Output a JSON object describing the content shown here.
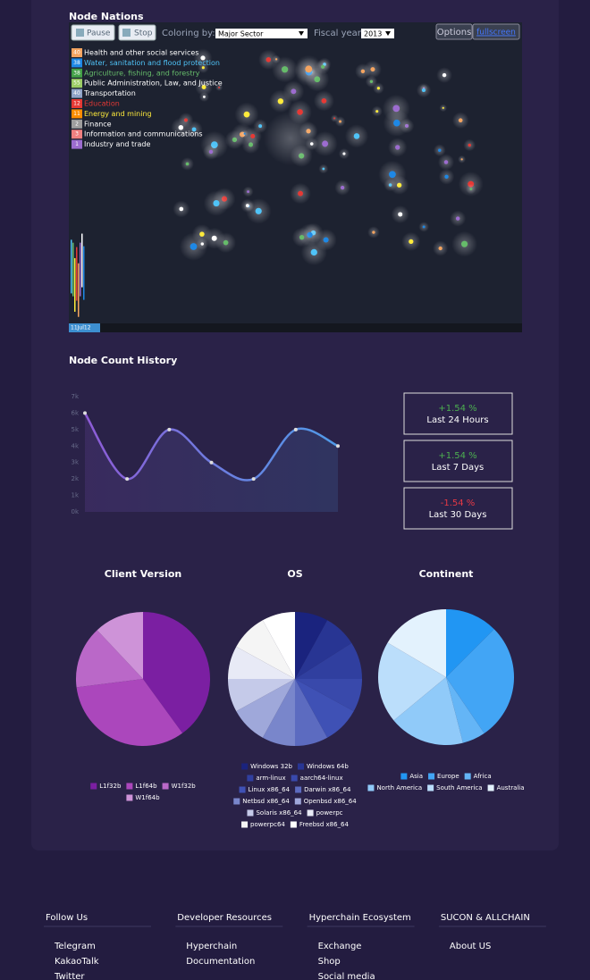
{
  "page": {
    "map": {
      "title": "Node Nations",
      "controls": {
        "pause": "Pause",
        "stop": "Stop",
        "coloring_label": "Coloring by:",
        "coloring_value": "Major Sector",
        "year_label": "Fiscal year:",
        "year_value": "2013",
        "options": "Options",
        "fullscreen": "fullscreen"
      },
      "legend": [
        {
          "count": 40,
          "label": "Health and other social services",
          "color": "#f4a460",
          "text_color": "#ffffff"
        },
        {
          "count": 38,
          "label": "Water, sanitation and flood protection",
          "color": "#1e88e5",
          "text_color": "#4fc3f7"
        },
        {
          "count": 38,
          "label": "Agriculture, fishing, and forestry",
          "color": "#43a047",
          "text_color": "#66bb6a"
        },
        {
          "count": 55,
          "label": "Public Administration, Law, and Justice",
          "color": "#9ccc65",
          "text_color": "#ffffff"
        },
        {
          "count": 40,
          "label": "Transportation",
          "color": "#90a4c8",
          "text_color": "#ffffff"
        },
        {
          "count": 12,
          "label": "Education",
          "color": "#e53935",
          "text_color": "#e53935"
        },
        {
          "count": 11,
          "label": "Energy and mining",
          "color": "#fb8c00",
          "text_color": "#ffeb3b"
        },
        {
          "count": 2,
          "label": "Finance",
          "color": "#9e9e9e",
          "text_color": "#ffffff"
        },
        {
          "count": 3,
          "label": "Information and communications",
          "color": "#f08080",
          "text_color": "#ffffff"
        },
        {
          "count": 1,
          "label": "Industry and trade",
          "color": "#9c6ccf",
          "text_color": "#ffffff"
        }
      ],
      "timeline": "11Jul12"
    },
    "stats": [
      {
        "change": "+1.54 %",
        "period": "Last 24 Hours",
        "color": "#4caf50"
      },
      {
        "change": "+1.54 %",
        "period": "Last 7 Days",
        "color": "#4caf50"
      },
      {
        "change": "-1.54 %",
        "period": "Last 30 Days",
        "color": "#e53945"
      }
    ],
    "footer": [
      {
        "heading": "Follow Us",
        "links": [
          "Telegram",
          "KakaoTalk",
          "Twitter"
        ]
      },
      {
        "heading": "Developer Resources",
        "links": [
          "Hyperchain",
          "Documentation"
        ]
      },
      {
        "heading": "Hyperchain Ecosystem",
        "links": [
          "Exchange",
          "Shop",
          "Social media"
        ]
      },
      {
        "heading": "SUCON & ALLCHAIN",
        "links": [
          "About US"
        ]
      }
    ]
  },
  "chart_data": [
    {
      "type": "line",
      "title": "Node Count History",
      "categories": [
        null,
        null,
        null,
        null,
        null,
        null,
        null
      ],
      "values": [
        6000,
        2000,
        5000,
        3000,
        2000,
        5000,
        4000
      ],
      "gradient": [
        "#8e5bd6",
        "#4f9be8"
      ],
      "ylim": [
        0,
        7000
      ],
      "yticks": [
        {
          "value": 0,
          "label": "0k"
        },
        {
          "value": 1000,
          "label": "1k"
        },
        {
          "value": 2000,
          "label": "2k"
        },
        {
          "value": 3000,
          "label": "3k"
        },
        {
          "value": 4000,
          "label": "4k"
        },
        {
          "value": 5000,
          "label": "5k"
        },
        {
          "value": 6000,
          "label": "6k"
        },
        {
          "value": 7000,
          "label": "7k"
        }
      ],
      "grid": false
    },
    {
      "type": "pie",
      "title": "Client Version",
      "categories": [
        "L1f32b",
        "L1f64b",
        "W1f32b",
        "W1f64b"
      ],
      "values": [
        40,
        33,
        15,
        12
      ],
      "colors": [
        "#7b1fa2",
        "#ab47bc",
        "#ba68c8",
        "#ce93d8"
      ]
    },
    {
      "type": "pie",
      "title": "OS",
      "categories": [
        "Windows 32b",
        "Windows 64b",
        "arm-linux",
        "aarch64-linux",
        "Linux x86_64",
        "Darwin x86_64",
        "Netbsd x86_64",
        "Openbsd x86_64",
        "Solaris x86_64",
        "powerpc",
        "powerpc64",
        "Freebsd x86_64"
      ],
      "values": [
        8,
        8,
        9,
        8,
        9,
        8,
        8,
        9,
        8,
        8,
        9,
        8
      ],
      "colors": [
        "#1a237e",
        "#283593",
        "#303f9f",
        "#3949ab",
        "#3f51b5",
        "#5c6bc0",
        "#7986cb",
        "#9fa8da",
        "#c5cae9",
        "#e8eaf6",
        "#f5f5f5",
        "#ffffff"
      ]
    },
    {
      "type": "pie",
      "title": "Continent",
      "categories": [
        "Asia",
        "Europe",
        "Africa",
        "North America",
        "South America",
        "Australia"
      ],
      "values": [
        12.5,
        28,
        5.5,
        18,
        19.5,
        16.5
      ],
      "colors": [
        "#2196f3",
        "#42a5f5",
        "#64b5f6",
        "#90caf9",
        "#bbdefb",
        "#e3f2fd"
      ]
    }
  ]
}
